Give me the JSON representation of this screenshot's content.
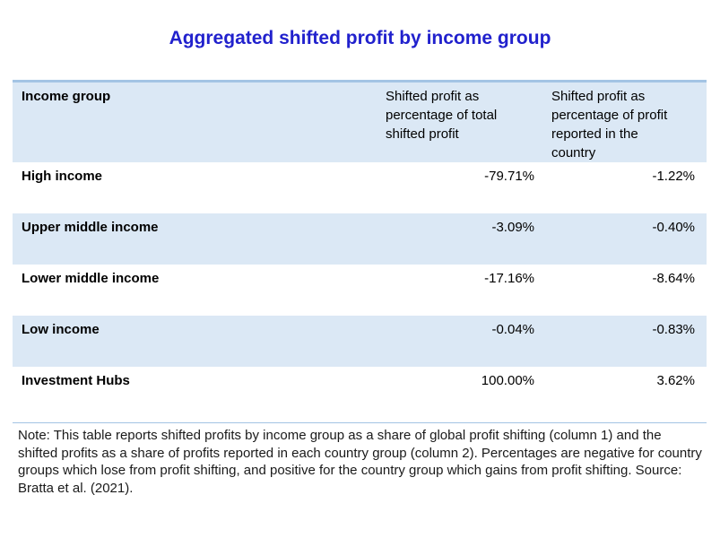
{
  "title": "Aggregated shifted profit by income group",
  "table": {
    "columns": [
      "Income group",
      "Shifted profit as percentage of total shifted profit",
      "Shifted profit as percentage of profit reported in the country"
    ],
    "rows": [
      {
        "group": "High income",
        "values": [
          "-79.71%",
          "-1.22%"
        ]
      },
      {
        "group": "Upper middle income",
        "values": [
          "-3.09%",
          "-0.40%"
        ]
      },
      {
        "group": "Lower middle income",
        "values": [
          "-17.16%",
          "-8.64%"
        ]
      },
      {
        "group": "Low income",
        "values": [
          "-0.04%",
          "-0.83%"
        ]
      },
      {
        "group": "Investment Hubs",
        "values": [
          "100.00%",
          "3.62%"
        ]
      }
    ]
  },
  "note": "Note: This table reports shifted profits by income group as a share of global profit shifting (column 1) and the shifted profits as a share of profits reported in each country group (column 2). Percentages are negative for country groups which lose from profit shifting, and positive for the country group which gains from profit shifting. Source: Bratta et al. (2021).",
  "colors": {
    "title_text": "#2121cd",
    "band_fill": "#dbe8f5",
    "rule_line": "#a3c4e4",
    "body_text": "#000000"
  }
}
